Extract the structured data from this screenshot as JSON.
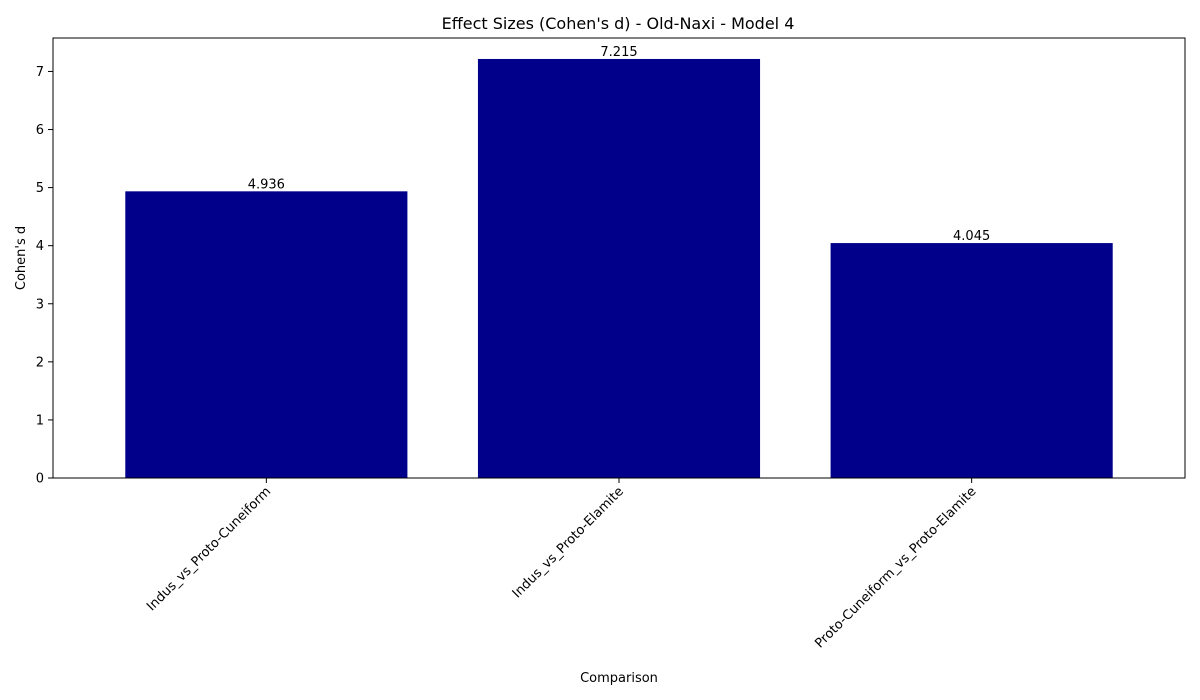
{
  "chart_data": {
    "type": "bar",
    "title": "Effect Sizes (Cohen's d) - Old-Naxi - Model 4",
    "xlabel": "Comparison",
    "ylabel": "Cohen's d",
    "categories": [
      "Indus_vs_Proto-Cuneiform",
      "Indus_vs_Proto-Elamite",
      "Proto-Cuneiform_vs_Proto-Elamite"
    ],
    "values": [
      4.936,
      7.215,
      4.045
    ],
    "value_labels": [
      "4.936",
      "7.215",
      "4.045"
    ],
    "ylim": [
      0,
      7.576
    ],
    "yticks": [
      0,
      1,
      2,
      3,
      4,
      5,
      6,
      7
    ],
    "grid": false,
    "legend": "none",
    "bar_color": "#00008b",
    "tick_label_rotation_deg": 45
  }
}
